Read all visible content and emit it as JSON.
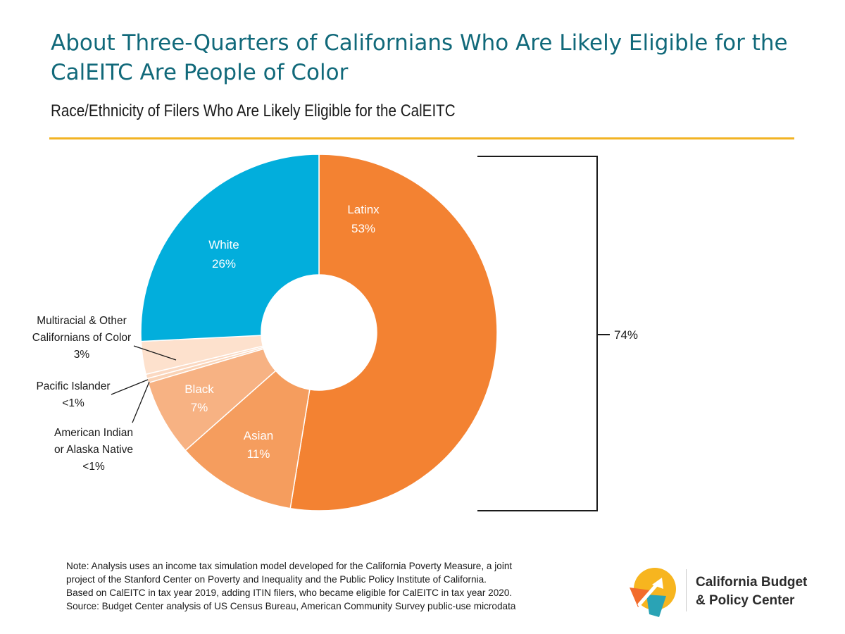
{
  "header": {
    "title": "About Three-Quarters of Californians Who Are Likely Eligible for the CalEITC Are People of Color",
    "subtitle": "Race/Ethnicity of Filers Who Are Likely Eligible for the CalEITC"
  },
  "chart_data": {
    "type": "pie",
    "variant": "donut",
    "title": "About Three-Quarters of Californians Who Are Likely Eligible for the CalEITC Are People of Color",
    "subtitle": "Race/Ethnicity of Filers Who Are Likely Eligible for the CalEITC",
    "unit": "%",
    "slices": [
      {
        "name": "Latinx",
        "value": 53,
        "display": "53%",
        "color": "#f38232"
      },
      {
        "name": "Asian",
        "value": 11,
        "display": "11%",
        "color": "#f59d5e"
      },
      {
        "name": "Black",
        "value": 7,
        "display": "7%",
        "color": "#f7b283"
      },
      {
        "name": "American Indian or Alaska Native",
        "value": 0.4,
        "display": "<1%",
        "color": "#fad3b6"
      },
      {
        "name": "Pacific Islander",
        "value": 0.4,
        "display": "<1%",
        "color": "#fbd9c2"
      },
      {
        "name": "Multiracial & Other Californians of Color",
        "value": 3,
        "display": "3%",
        "color": "#fde1cd"
      },
      {
        "name": "White",
        "value": 26,
        "display": "26%",
        "color": "#02aedc"
      }
    ],
    "annotations": [
      {
        "text": "74%",
        "meaning": "share of likely eligible filers who are people of color (bracket spanning Latinx through Multiracial & Other Californians of Color)"
      }
    ],
    "legend": "none"
  },
  "labels": {
    "latinx": {
      "name": "Latinx",
      "pct": "53%"
    },
    "white": {
      "name": "White",
      "pct": "26%"
    },
    "asian": {
      "name": "Asian",
      "pct": "11%"
    },
    "black": {
      "name": "Black",
      "pct": "7%"
    },
    "multiracial": {
      "line1": "Multiracial & Other",
      "line2": "Californians of Color",
      "pct": "3%"
    },
    "pacific": {
      "name": "Pacific Islander",
      "pct": "<1%"
    },
    "american_indian": {
      "line1": "American Indian",
      "line2": "or Alaska Native",
      "pct": "<1%"
    },
    "bracket": "74%"
  },
  "note": {
    "lines": [
      "Note: Analysis uses an income tax simulation model developed for the California Poverty Measure, a joint",
      "project of the Stanford Center on Poverty and Inequality and the Public Policy Institute of California.",
      "Based on CalEITC in tax year 2019, adding ITIN filers, who became eligible for CalEITC in tax year 2020.",
      "Source: Budget Center analysis of US Census Bureau, American Community Survey public-use microdata"
    ]
  },
  "logo": {
    "line1": "California Budget",
    "line2": "& Policy Center",
    "colors": {
      "yellow": "#f7b51f",
      "orange": "#f26b2b",
      "teal": "#2aa3b5"
    }
  },
  "colors": {
    "title": "#11697a",
    "rule": "#f2b324",
    "bracket": "#1a1a1a"
  }
}
